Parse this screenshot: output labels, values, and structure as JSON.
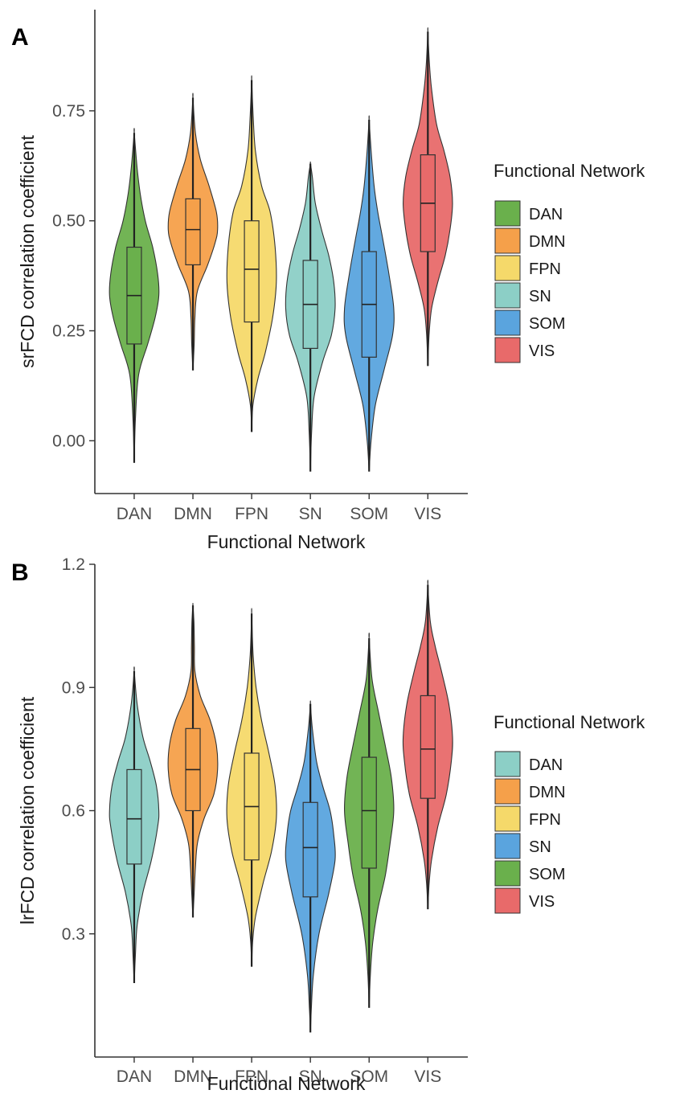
{
  "colors": {
    "DAN_green": "#6ab04c",
    "DMN_orange": "#f5a04a",
    "FPN_yellow": "#f5d96a",
    "SN_teal": "#8ccfc6",
    "SOM_blue": "#5aa4de",
    "VIS_red": "#e86a6a",
    "outline": "#333333"
  },
  "chart_data": [
    {
      "type": "violin",
      "panel_label": "A",
      "xlabel": "Functional Network",
      "ylabel": "srFCD correlation coefficient",
      "categories": [
        "DAN",
        "DMN",
        "FPN",
        "SN",
        "SOM",
        "VIS"
      ],
      "ylim": [
        -0.12,
        0.98
      ],
      "yticks": [
        0.0,
        0.25,
        0.5,
        0.75
      ],
      "ytick_labels": [
        "0.00",
        "0.25",
        "0.50",
        "0.75"
      ],
      "legend": {
        "title": "Functional Network",
        "entries": [
          {
            "label": "DAN",
            "color_key": "DAN_green"
          },
          {
            "label": "DMN",
            "color_key": "DMN_orange"
          },
          {
            "label": "FPN",
            "color_key": "FPN_yellow"
          },
          {
            "label": "SN",
            "color_key": "SN_teal"
          },
          {
            "label": "SOM",
            "color_key": "SOM_blue"
          },
          {
            "label": "VIS",
            "color_key": "VIS_red"
          }
        ]
      },
      "series": [
        {
          "name": "DAN",
          "color_key": "DAN_green",
          "min": -0.05,
          "max": 0.7,
          "q1": 0.22,
          "median": 0.33,
          "q3": 0.44,
          "wlo": 0.03,
          "whi": 0.62,
          "profile": [
            [
              -0.05,
              0.0
            ],
            [
              0.05,
              0.05
            ],
            [
              0.15,
              0.18
            ],
            [
              0.22,
              0.55
            ],
            [
              0.28,
              0.85
            ],
            [
              0.33,
              1.0
            ],
            [
              0.38,
              0.95
            ],
            [
              0.44,
              0.75
            ],
            [
              0.5,
              0.45
            ],
            [
              0.56,
              0.25
            ],
            [
              0.62,
              0.12
            ],
            [
              0.7,
              0.0
            ]
          ]
        },
        {
          "name": "DMN",
          "color_key": "DMN_orange",
          "min": 0.16,
          "max": 0.78,
          "q1": 0.4,
          "median": 0.48,
          "q3": 0.55,
          "wlo": 0.2,
          "whi": 0.73,
          "profile": [
            [
              0.16,
              0.0
            ],
            [
              0.22,
              0.05
            ],
            [
              0.28,
              0.08
            ],
            [
              0.34,
              0.18
            ],
            [
              0.4,
              0.6
            ],
            [
              0.45,
              0.9
            ],
            [
              0.48,
              1.0
            ],
            [
              0.52,
              0.95
            ],
            [
              0.58,
              0.65
            ],
            [
              0.64,
              0.3
            ],
            [
              0.7,
              0.1
            ],
            [
              0.78,
              0.0
            ]
          ]
        },
        {
          "name": "FPN",
          "color_key": "FPN_yellow",
          "min": 0.02,
          "max": 0.82,
          "q1": 0.27,
          "median": 0.39,
          "q3": 0.5,
          "wlo": 0.06,
          "whi": 0.76,
          "profile": [
            [
              0.02,
              0.0
            ],
            [
              0.08,
              0.05
            ],
            [
              0.14,
              0.25
            ],
            [
              0.2,
              0.55
            ],
            [
              0.28,
              0.85
            ],
            [
              0.36,
              1.0
            ],
            [
              0.44,
              0.95
            ],
            [
              0.52,
              0.75
            ],
            [
              0.58,
              0.4
            ],
            [
              0.66,
              0.15
            ],
            [
              0.74,
              0.06
            ],
            [
              0.82,
              0.0
            ]
          ]
        },
        {
          "name": "SN",
          "color_key": "SN_teal",
          "min": -0.07,
          "max": 0.63,
          "q1": 0.21,
          "median": 0.31,
          "q3": 0.41,
          "wlo": -0.04,
          "whi": 0.6,
          "profile": [
            [
              -0.07,
              0.0
            ],
            [
              0.02,
              0.05
            ],
            [
              0.1,
              0.15
            ],
            [
              0.18,
              0.5
            ],
            [
              0.24,
              0.85
            ],
            [
              0.3,
              1.0
            ],
            [
              0.36,
              0.95
            ],
            [
              0.42,
              0.75
            ],
            [
              0.48,
              0.45
            ],
            [
              0.54,
              0.2
            ],
            [
              0.6,
              0.08
            ],
            [
              0.63,
              0.0
            ]
          ]
        },
        {
          "name": "SOM",
          "color_key": "SOM_blue",
          "min": -0.07,
          "max": 0.73,
          "q1": 0.19,
          "median": 0.31,
          "q3": 0.43,
          "wlo": 0.0,
          "whi": 0.66,
          "profile": [
            [
              -0.07,
              0.0
            ],
            [
              0.0,
              0.08
            ],
            [
              0.08,
              0.25
            ],
            [
              0.16,
              0.6
            ],
            [
              0.24,
              0.95
            ],
            [
              0.3,
              1.0
            ],
            [
              0.38,
              0.8
            ],
            [
              0.46,
              0.55
            ],
            [
              0.52,
              0.35
            ],
            [
              0.58,
              0.2
            ],
            [
              0.66,
              0.08
            ],
            [
              0.73,
              0.0
            ]
          ]
        },
        {
          "name": "VIS",
          "color_key": "VIS_red",
          "min": 0.17,
          "max": 0.93,
          "q1": 0.43,
          "median": 0.54,
          "q3": 0.65,
          "wlo": 0.25,
          "whi": 0.86,
          "profile": [
            [
              0.17,
              0.0
            ],
            [
              0.24,
              0.05
            ],
            [
              0.3,
              0.15
            ],
            [
              0.36,
              0.4
            ],
            [
              0.42,
              0.7
            ],
            [
              0.48,
              0.9
            ],
            [
              0.54,
              1.0
            ],
            [
              0.6,
              0.9
            ],
            [
              0.66,
              0.65
            ],
            [
              0.72,
              0.35
            ],
            [
              0.8,
              0.15
            ],
            [
              0.86,
              0.06
            ],
            [
              0.93,
              0.0
            ]
          ]
        }
      ]
    },
    {
      "type": "violin",
      "panel_label": "B",
      "xlabel": "Functional Network",
      "ylabel": "lrFCD correlation coefficient",
      "categories": [
        "DAN",
        "DMN",
        "FPN",
        "SN",
        "SOM",
        "VIS"
      ],
      "ylim": [
        0.0,
        1.2
      ],
      "yticks": [
        0.3,
        0.6,
        0.9,
        1.2
      ],
      "ytick_labels": [
        "0.3",
        "0.6",
        "0.9",
        "1.2"
      ],
      "legend": {
        "title": "Functional Network",
        "entries": [
          {
            "label": "DAN",
            "color_key": "SN_teal"
          },
          {
            "label": "DMN",
            "color_key": "DMN_orange"
          },
          {
            "label": "FPN",
            "color_key": "FPN_yellow"
          },
          {
            "label": "SN",
            "color_key": "SOM_blue"
          },
          {
            "label": "SOM",
            "color_key": "DAN_green"
          },
          {
            "label": "VIS",
            "color_key": "VIS_red"
          }
        ]
      },
      "series": [
        {
          "name": "DAN",
          "color_key": "SN_teal",
          "min": 0.18,
          "max": 0.94,
          "q1": 0.47,
          "median": 0.58,
          "q3": 0.7,
          "wlo": 0.27,
          "whi": 0.88,
          "profile": [
            [
              0.18,
              0.0
            ],
            [
              0.25,
              0.05
            ],
            [
              0.32,
              0.12
            ],
            [
              0.4,
              0.35
            ],
            [
              0.48,
              0.7
            ],
            [
              0.56,
              0.95
            ],
            [
              0.6,
              1.0
            ],
            [
              0.66,
              0.9
            ],
            [
              0.72,
              0.65
            ],
            [
              0.78,
              0.35
            ],
            [
              0.86,
              0.12
            ],
            [
              0.94,
              0.0
            ]
          ]
        },
        {
          "name": "DMN",
          "color_key": "DMN_orange",
          "min": 0.34,
          "max": 1.1,
          "q1": 0.6,
          "median": 0.7,
          "q3": 0.8,
          "wlo": 0.39,
          "whi": 1.07,
          "profile": [
            [
              0.34,
              0.0
            ],
            [
              0.4,
              0.05
            ],
            [
              0.46,
              0.1
            ],
            [
              0.52,
              0.18
            ],
            [
              0.58,
              0.45
            ],
            [
              0.64,
              0.85
            ],
            [
              0.7,
              1.0
            ],
            [
              0.76,
              0.95
            ],
            [
              0.82,
              0.7
            ],
            [
              0.88,
              0.3
            ],
            [
              0.94,
              0.08
            ],
            [
              1.0,
              0.06
            ],
            [
              1.06,
              0.04
            ],
            [
              1.1,
              0.0
            ]
          ]
        },
        {
          "name": "FPN",
          "color_key": "FPN_yellow",
          "min": 0.22,
          "max": 1.08,
          "q1": 0.48,
          "median": 0.61,
          "q3": 0.74,
          "wlo": 0.29,
          "whi": 0.98,
          "profile": [
            [
              0.22,
              0.0
            ],
            [
              0.28,
              0.04
            ],
            [
              0.34,
              0.15
            ],
            [
              0.42,
              0.45
            ],
            [
              0.5,
              0.8
            ],
            [
              0.58,
              1.0
            ],
            [
              0.66,
              0.95
            ],
            [
              0.74,
              0.7
            ],
            [
              0.82,
              0.4
            ],
            [
              0.9,
              0.18
            ],
            [
              0.98,
              0.06
            ],
            [
              1.08,
              0.0
            ]
          ]
        },
        {
          "name": "SN",
          "color_key": "SOM_blue",
          "min": 0.06,
          "max": 0.86,
          "q1": 0.39,
          "median": 0.51,
          "q3": 0.62,
          "wlo": 0.12,
          "whi": 0.8,
          "profile": [
            [
              0.06,
              0.0
            ],
            [
              0.12,
              0.04
            ],
            [
              0.2,
              0.12
            ],
            [
              0.3,
              0.35
            ],
            [
              0.4,
              0.75
            ],
            [
              0.48,
              1.0
            ],
            [
              0.54,
              0.95
            ],
            [
              0.6,
              0.8
            ],
            [
              0.66,
              0.5
            ],
            [
              0.72,
              0.25
            ],
            [
              0.8,
              0.08
            ],
            [
              0.86,
              0.0
            ]
          ]
        },
        {
          "name": "SOM",
          "color_key": "DAN_green",
          "min": 0.12,
          "max": 1.02,
          "q1": 0.46,
          "median": 0.6,
          "q3": 0.73,
          "wlo": 0.19,
          "whi": 0.95,
          "profile": [
            [
              0.12,
              0.0
            ],
            [
              0.2,
              0.05
            ],
            [
              0.28,
              0.15
            ],
            [
              0.36,
              0.35
            ],
            [
              0.44,
              0.65
            ],
            [
              0.52,
              0.85
            ],
            [
              0.6,
              1.0
            ],
            [
              0.68,
              0.9
            ],
            [
              0.76,
              0.65
            ],
            [
              0.84,
              0.38
            ],
            [
              0.92,
              0.12
            ],
            [
              1.02,
              0.0
            ]
          ]
        },
        {
          "name": "VIS",
          "color_key": "VIS_red",
          "min": 0.36,
          "max": 1.15,
          "q1": 0.63,
          "median": 0.75,
          "q3": 0.88,
          "wlo": 0.45,
          "whi": 1.06,
          "profile": [
            [
              0.36,
              0.0
            ],
            [
              0.42,
              0.05
            ],
            [
              0.48,
              0.15
            ],
            [
              0.56,
              0.4
            ],
            [
              0.64,
              0.75
            ],
            [
              0.72,
              0.95
            ],
            [
              0.78,
              1.0
            ],
            [
              0.86,
              0.85
            ],
            [
              0.94,
              0.55
            ],
            [
              1.0,
              0.3
            ],
            [
              1.06,
              0.1
            ],
            [
              1.15,
              0.0
            ]
          ]
        }
      ]
    }
  ]
}
